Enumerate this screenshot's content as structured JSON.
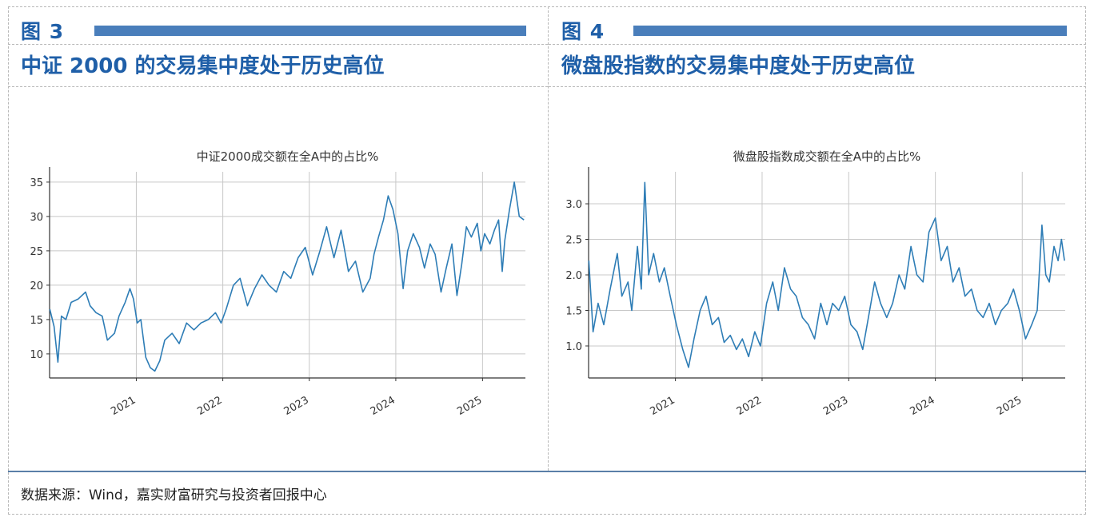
{
  "figures": [
    {
      "label": "图 3",
      "heading": "中证 2000 的交易集中度处于历史高位",
      "chart_data": {
        "type": "line",
        "title": "中证2000成交额在全A中的占比%",
        "xlabel": "",
        "ylabel": "",
        "x_ticks": [
          "2021",
          "2022",
          "2023",
          "2024",
          "2025"
        ],
        "y_ticks": [
          10,
          15,
          20,
          25,
          30,
          35
        ],
        "ylim": [
          6.5,
          36.5
        ],
        "xlim": [
          "2020-01-01",
          "2025-07-01"
        ],
        "grid": true,
        "color": "#2e7db6",
        "series": [
          {
            "name": "",
            "points": [
              [
                "2020-01-02",
                16.5
              ],
              [
                "2020-01-20",
                14.0
              ],
              [
                "2020-02-05",
                8.8
              ],
              [
                "2020-02-20",
                15.5
              ],
              [
                "2020-03-10",
                15.0
              ],
              [
                "2020-04-01",
                17.5
              ],
              [
                "2020-05-01",
                18.0
              ],
              [
                "2020-06-01",
                19.0
              ],
              [
                "2020-06-20",
                17.0
              ],
              [
                "2020-07-15",
                16.0
              ],
              [
                "2020-08-10",
                15.5
              ],
              [
                "2020-09-01",
                12.0
              ],
              [
                "2020-10-01",
                13.0
              ],
              [
                "2020-10-20",
                15.5
              ],
              [
                "2020-11-15",
                17.5
              ],
              [
                "2020-12-05",
                19.5
              ],
              [
                "2020-12-20",
                18.0
              ],
              [
                "2021-01-05",
                14.5
              ],
              [
                "2021-01-20",
                15.0
              ],
              [
                "2021-02-10",
                9.5
              ],
              [
                "2021-03-01",
                8.0
              ],
              [
                "2021-03-20",
                7.5
              ],
              [
                "2021-04-10",
                9.0
              ],
              [
                "2021-05-01",
                12.0
              ],
              [
                "2021-06-01",
                13.0
              ],
              [
                "2021-07-01",
                11.5
              ],
              [
                "2021-08-01",
                14.5
              ],
              [
                "2021-09-01",
                13.5
              ],
              [
                "2021-10-01",
                14.5
              ],
              [
                "2021-11-01",
                15.0
              ],
              [
                "2021-12-01",
                16.0
              ],
              [
                "2021-12-25",
                14.5
              ],
              [
                "2022-01-15",
                16.5
              ],
              [
                "2022-02-15",
                20.0
              ],
              [
                "2022-03-15",
                21.0
              ],
              [
                "2022-04-15",
                17.0
              ],
              [
                "2022-05-15",
                19.5
              ],
              [
                "2022-06-15",
                21.5
              ],
              [
                "2022-07-15",
                20.0
              ],
              [
                "2022-08-15",
                19.0
              ],
              [
                "2022-09-15",
                22.0
              ],
              [
                "2022-10-15",
                21.0
              ],
              [
                "2022-11-15",
                24.0
              ],
              [
                "2022-12-15",
                25.5
              ],
              [
                "2023-01-15",
                21.5
              ],
              [
                "2023-02-15",
                25.0
              ],
              [
                "2023-03-15",
                28.5
              ],
              [
                "2023-04-15",
                24.0
              ],
              [
                "2023-05-15",
                28.0
              ],
              [
                "2023-06-15",
                22.0
              ],
              [
                "2023-07-15",
                23.5
              ],
              [
                "2023-08-15",
                19.0
              ],
              [
                "2023-09-15",
                21.0
              ],
              [
                "2023-10-01",
                24.5
              ],
              [
                "2023-10-20",
                27.0
              ],
              [
                "2023-11-10",
                29.5
              ],
              [
                "2023-11-30",
                33.0
              ],
              [
                "2023-12-20",
                31.0
              ],
              [
                "2024-01-10",
                27.5
              ],
              [
                "2024-02-01",
                19.5
              ],
              [
                "2024-02-20",
                25.0
              ],
              [
                "2024-03-15",
                27.5
              ],
              [
                "2024-04-10",
                25.5
              ],
              [
                "2024-05-01",
                22.5
              ],
              [
                "2024-05-25",
                26.0
              ],
              [
                "2024-06-15",
                24.5
              ],
              [
                "2024-07-10",
                19.0
              ],
              [
                "2024-08-01",
                22.5
              ],
              [
                "2024-08-25",
                26.0
              ],
              [
                "2024-09-15",
                18.5
              ],
              [
                "2024-10-05",
                23.0
              ],
              [
                "2024-10-25",
                28.5
              ],
              [
                "2024-11-15",
                27.0
              ],
              [
                "2024-12-10",
                29.0
              ],
              [
                "2024-12-25",
                25.0
              ],
              [
                "2025-01-10",
                27.5
              ],
              [
                "2025-02-01",
                26.0
              ],
              [
                "2025-02-20",
                28.0
              ],
              [
                "2025-03-10",
                29.5
              ],
              [
                "2025-03-25",
                22.0
              ],
              [
                "2025-04-05",
                26.5
              ],
              [
                "2025-04-25",
                31.0
              ],
              [
                "2025-05-15",
                35.0
              ],
              [
                "2025-06-05",
                30.0
              ],
              [
                "2025-06-25",
                29.5
              ]
            ]
          }
        ]
      }
    },
    {
      "label": "图 4",
      "heading": "微盘股指数的交易集中度处于历史高位",
      "chart_data": {
        "type": "line",
        "title": "微盘股指数成交额在全A中的占比%",
        "xlabel": "",
        "ylabel": "",
        "x_ticks": [
          "2021",
          "2022",
          "2023",
          "2024",
          "2025"
        ],
        "y_ticks": [
          1.0,
          1.5,
          2.0,
          2.5,
          3.0
        ],
        "ylim": [
          0.55,
          3.45
        ],
        "xlim": [
          "2020-01-01",
          "2025-07-01"
        ],
        "grid": true,
        "color": "#2e7db6",
        "series": [
          {
            "name": "",
            "points": [
              [
                "2020-01-02",
                2.2
              ],
              [
                "2020-01-20",
                1.2
              ],
              [
                "2020-02-10",
                1.6
              ],
              [
                "2020-03-05",
                1.3
              ],
              [
                "2020-04-01",
                1.8
              ],
              [
                "2020-05-01",
                2.3
              ],
              [
                "2020-05-20",
                1.7
              ],
              [
                "2020-06-15",
                1.9
              ],
              [
                "2020-07-01",
                1.5
              ],
              [
                "2020-07-25",
                2.4
              ],
              [
                "2020-08-10",
                1.8
              ],
              [
                "2020-08-25",
                3.3
              ],
              [
                "2020-09-10",
                2.0
              ],
              [
                "2020-10-01",
                2.3
              ],
              [
                "2020-10-25",
                1.9
              ],
              [
                "2020-11-15",
                2.1
              ],
              [
                "2020-12-10",
                1.7
              ],
              [
                "2021-01-05",
                1.3
              ],
              [
                "2021-02-01",
                0.95
              ],
              [
                "2021-02-25",
                0.7
              ],
              [
                "2021-03-20",
                1.1
              ],
              [
                "2021-04-15",
                1.5
              ],
              [
                "2021-05-10",
                1.7
              ],
              [
                "2021-06-05",
                1.3
              ],
              [
                "2021-07-01",
                1.4
              ],
              [
                "2021-07-25",
                1.05
              ],
              [
                "2021-08-20",
                1.15
              ],
              [
                "2021-09-15",
                0.95
              ],
              [
                "2021-10-10",
                1.1
              ],
              [
                "2021-11-05",
                0.85
              ],
              [
                "2021-12-01",
                1.2
              ],
              [
                "2021-12-25",
                1.0
              ],
              [
                "2022-01-20",
                1.6
              ],
              [
                "2022-02-15",
                1.9
              ],
              [
                "2022-03-10",
                1.5
              ],
              [
                "2022-04-05",
                2.1
              ],
              [
                "2022-05-01",
                1.8
              ],
              [
                "2022-05-25",
                1.7
              ],
              [
                "2022-06-20",
                1.4
              ],
              [
                "2022-07-15",
                1.3
              ],
              [
                "2022-08-10",
                1.1
              ],
              [
                "2022-09-05",
                1.6
              ],
              [
                "2022-10-01",
                1.3
              ],
              [
                "2022-10-25",
                1.6
              ],
              [
                "2022-11-20",
                1.5
              ],
              [
                "2022-12-15",
                1.7
              ],
              [
                "2023-01-10",
                1.3
              ],
              [
                "2023-02-05",
                1.2
              ],
              [
                "2023-03-01",
                0.95
              ],
              [
                "2023-03-25",
                1.4
              ],
              [
                "2023-04-20",
                1.9
              ],
              [
                "2023-05-15",
                1.6
              ],
              [
                "2023-06-10",
                1.4
              ],
              [
                "2023-07-05",
                1.6
              ],
              [
                "2023-08-01",
                2.0
              ],
              [
                "2023-08-25",
                1.8
              ],
              [
                "2023-09-20",
                2.4
              ],
              [
                "2023-10-15",
                2.0
              ],
              [
                "2023-11-10",
                1.9
              ],
              [
                "2023-12-05",
                2.6
              ],
              [
                "2024-01-01",
                2.8
              ],
              [
                "2024-01-25",
                2.2
              ],
              [
                "2024-02-20",
                2.4
              ],
              [
                "2024-03-15",
                1.9
              ],
              [
                "2024-04-10",
                2.1
              ],
              [
                "2024-05-05",
                1.7
              ],
              [
                "2024-06-01",
                1.8
              ],
              [
                "2024-06-25",
                1.5
              ],
              [
                "2024-07-20",
                1.4
              ],
              [
                "2024-08-15",
                1.6
              ],
              [
                "2024-09-10",
                1.3
              ],
              [
                "2024-10-05",
                1.5
              ],
              [
                "2024-11-01",
                1.6
              ],
              [
                "2024-11-25",
                1.8
              ],
              [
                "2024-12-20",
                1.5
              ],
              [
                "2025-01-15",
                1.1
              ],
              [
                "2025-02-10",
                1.3
              ],
              [
                "2025-03-05",
                1.5
              ],
              [
                "2025-03-25",
                2.7
              ],
              [
                "2025-04-10",
                2.0
              ],
              [
                "2025-04-25",
                1.9
              ],
              [
                "2025-05-15",
                2.4
              ],
              [
                "2025-06-01",
                2.2
              ],
              [
                "2025-06-15",
                2.5
              ],
              [
                "2025-06-28",
                2.2
              ]
            ]
          }
        ]
      }
    }
  ],
  "source": "数据来源：Wind，嘉实财富研究与投资者回报中心"
}
